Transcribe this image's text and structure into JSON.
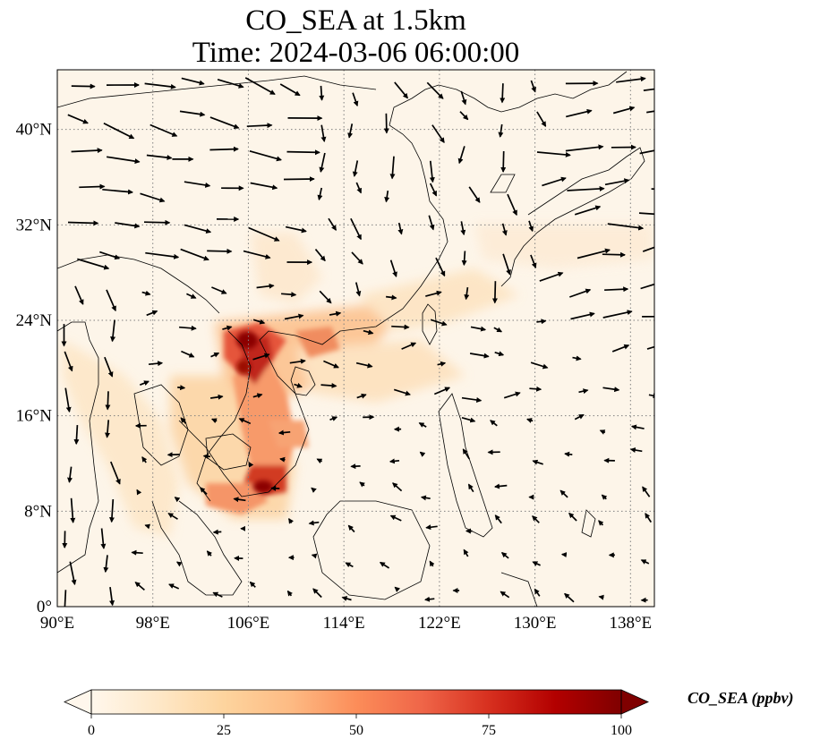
{
  "title_line1": "CO_SEA at 1.5km",
  "title_line2": "Time: 2024-03-06 06:00:00",
  "lat_ticks": [
    {
      "value": 0,
      "label": "0°"
    },
    {
      "value": 8,
      "label": "8°N"
    },
    {
      "value": 16,
      "label": "16°N"
    },
    {
      "value": 24,
      "label": "24°N"
    },
    {
      "value": 32,
      "label": "32°N"
    },
    {
      "value": 40,
      "label": "40°N"
    }
  ],
  "lon_ticks": [
    {
      "value": 90,
      "label": "90°E"
    },
    {
      "value": 98,
      "label": "98°E"
    },
    {
      "value": 106,
      "label": "106°E"
    },
    {
      "value": 114,
      "label": "114°E"
    },
    {
      "value": 122,
      "label": "122°E"
    },
    {
      "value": 130,
      "label": "130°E"
    },
    {
      "value": 138,
      "label": "138°E"
    }
  ],
  "map_extent": {
    "lon_min": 90,
    "lon_max": 140,
    "lat_min": 0,
    "lat_max": 45
  },
  "colorbar": {
    "label": "CO_SEA (ppbv)",
    "min": 0,
    "max": 100,
    "ticks": [
      {
        "value": 0,
        "label": "0"
      },
      {
        "value": 25,
        "label": "25"
      },
      {
        "value": 50,
        "label": "50"
      },
      {
        "value": 75,
        "label": "75"
      },
      {
        "value": 100,
        "label": "100"
      }
    ],
    "colormap": "OrRd",
    "colors": [
      "#fff7ec",
      "#fee8c8",
      "#fdd49e",
      "#fdbb84",
      "#fc8d59",
      "#ef6548",
      "#d7301f",
      "#b30000",
      "#7f0000"
    ]
  },
  "colors": {
    "background_low": "#fdf5e9",
    "hotspot": "#8b0000",
    "gridline": "#808080",
    "vector": "#000000"
  }
}
